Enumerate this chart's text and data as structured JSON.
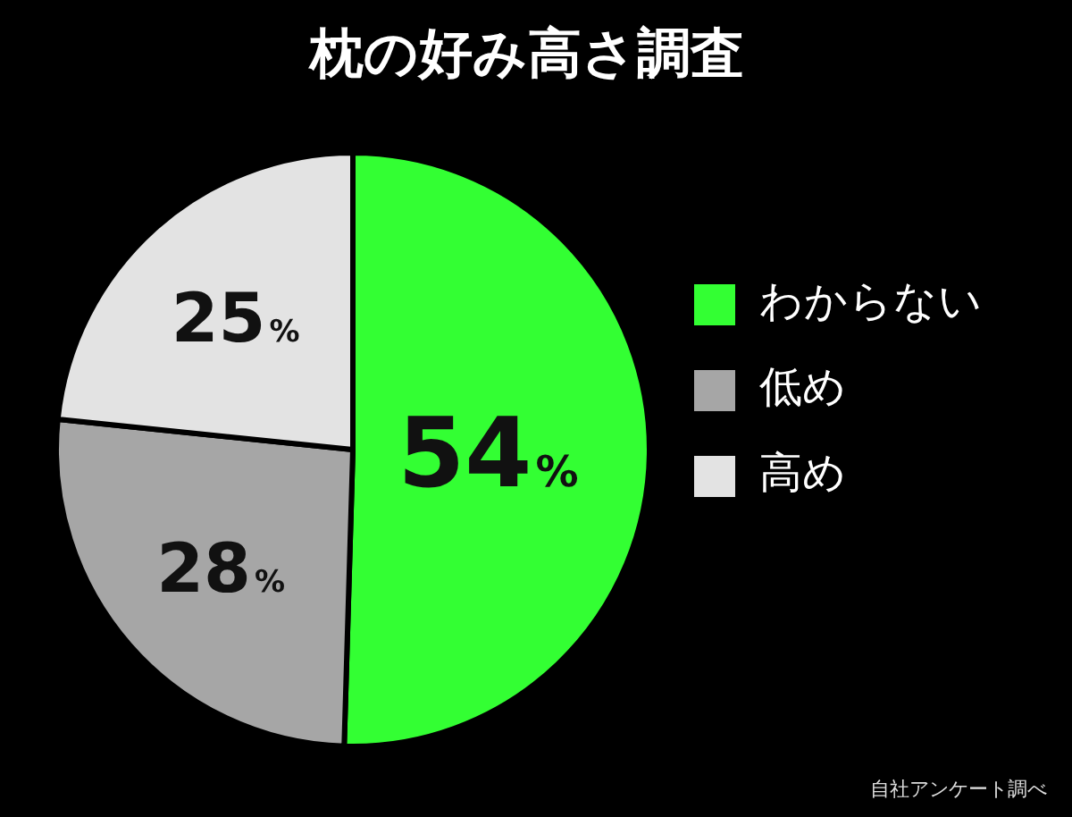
{
  "chart_data": {
    "type": "pie",
    "title": "枕の好み高さ調査",
    "categories": [
      "わからない",
      "低め",
      "高め"
    ],
    "values": [
      54,
      28,
      25
    ],
    "value_labels": [
      "54%",
      "28%",
      "25%"
    ],
    "colors": [
      "#33ff33",
      "#a6a6a6",
      "#e3e3e3"
    ],
    "legend": "right",
    "annotations": [
      "自社アンケート調べ"
    ]
  }
}
